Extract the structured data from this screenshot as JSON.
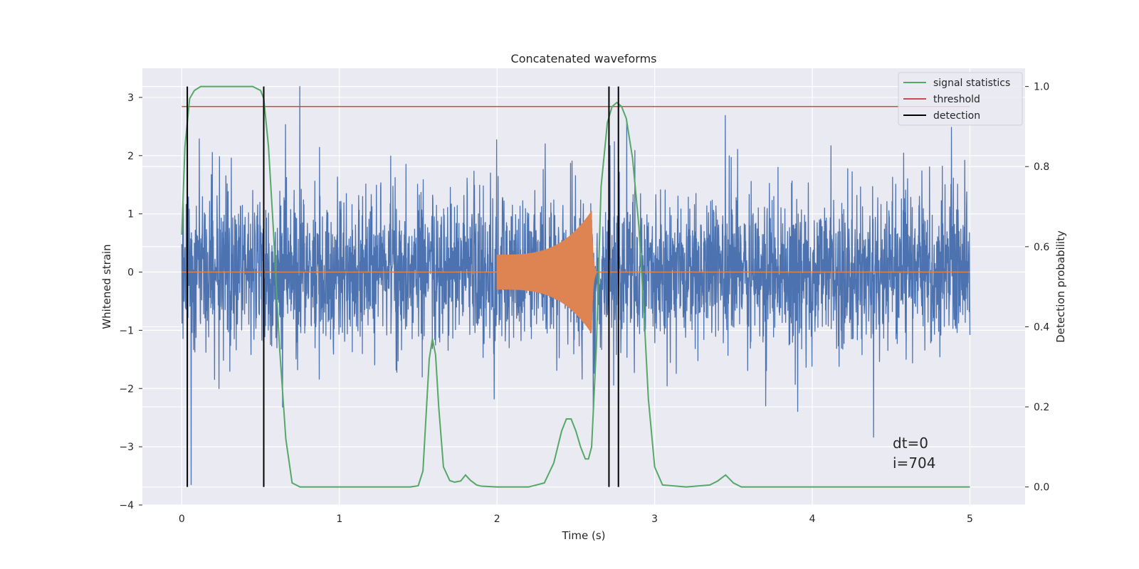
{
  "chart_data": {
    "type": "line",
    "title": "Concatenated waveforms",
    "xlabel": "Time (s)",
    "ylabel": "Whitened strain",
    "ylabel_right": "Detection probability",
    "xlim": [
      -0.25,
      5.35
    ],
    "ylim": [
      -4.0,
      3.5
    ],
    "ylim_right": [
      -0.045,
      1.0455
    ],
    "xticks": [
      0,
      1,
      2,
      3,
      4,
      5
    ],
    "yticks": [
      -4,
      -3,
      -2,
      -1,
      0,
      1,
      2,
      3
    ],
    "yticks_right": [
      0.0,
      0.2,
      0.4,
      0.6,
      0.8,
      1.0
    ],
    "xtick_labels": [
      "0",
      "1",
      "2",
      "3",
      "4",
      "5"
    ],
    "ytick_labels": [
      "−4",
      "−3",
      "−2",
      "−1",
      "0",
      "1",
      "2",
      "3"
    ],
    "ytick_labels_right": [
      "0.0",
      "0.2",
      "0.4",
      "0.6",
      "0.8",
      "1.0"
    ],
    "grid": true,
    "legend_position": "top-right",
    "colors": {
      "strain": "#4c72b0",
      "injected": "#dd8452",
      "signal_statistics": "#55a868",
      "threshold": "#c44e52",
      "detection": "#000000",
      "background": "#eaeaf2",
      "grid": "#ffffff"
    },
    "strain": {
      "t_start": 0.0,
      "t_end": 5.0,
      "approx_envelope": 1.8,
      "approx_peak": 3.2,
      "approx_trough": -3.65
    },
    "injected_waveform": {
      "t_start": 2.0,
      "t_merger": 2.6,
      "amplitude_start": 0.3,
      "amplitude_peak": 1.05
    },
    "series": [
      {
        "name": "signal statistics",
        "axis": "right",
        "x": [
          0.0,
          0.02,
          0.05,
          0.08,
          0.12,
          0.2,
          0.3,
          0.45,
          0.5,
          0.52,
          0.55,
          0.58,
          0.62,
          0.66,
          0.7,
          0.75,
          1.0,
          1.2,
          1.45,
          1.5,
          1.53,
          1.57,
          1.59,
          1.61,
          1.63,
          1.66,
          1.7,
          1.73,
          1.77,
          1.8,
          1.83,
          1.87,
          1.9,
          2.0,
          2.2,
          2.3,
          2.36,
          2.41,
          2.44,
          2.47,
          2.5,
          2.53,
          2.56,
          2.58,
          2.6,
          2.63,
          2.66,
          2.7,
          2.73,
          2.76,
          2.79,
          2.82,
          2.86,
          2.9,
          2.93,
          2.96,
          3.0,
          3.05,
          3.2,
          3.35,
          3.4,
          3.45,
          3.5,
          3.55,
          3.7,
          4.0,
          5.0
        ],
        "y": [
          0.63,
          0.85,
          0.97,
          0.99,
          1.0,
          1.0,
          1.0,
          1.0,
          0.99,
          0.97,
          0.85,
          0.65,
          0.35,
          0.12,
          0.01,
          0.0,
          0.0,
          0.0,
          0.0,
          0.003,
          0.04,
          0.32,
          0.37,
          0.33,
          0.2,
          0.05,
          0.016,
          0.012,
          0.015,
          0.03,
          0.017,
          0.005,
          0.002,
          0.0,
          0.0,
          0.01,
          0.06,
          0.14,
          0.17,
          0.17,
          0.14,
          0.1,
          0.07,
          0.07,
          0.1,
          0.35,
          0.75,
          0.91,
          0.95,
          0.96,
          0.95,
          0.92,
          0.82,
          0.65,
          0.45,
          0.22,
          0.05,
          0.005,
          0.0,
          0.005,
          0.015,
          0.03,
          0.01,
          0.0,
          0.0,
          0.0,
          0.0
        ]
      },
      {
        "name": "threshold",
        "axis": "right",
        "x": [
          0.0,
          5.0
        ],
        "y": [
          0.95,
          0.95
        ]
      },
      {
        "name": "detection",
        "type": "vlines",
        "axis": "right",
        "x": [
          0.035,
          0.52,
          2.71,
          2.77
        ],
        "y_range": [
          0.0,
          1.0
        ]
      }
    ],
    "annotations": [
      "dt=0",
      "i=704"
    ]
  }
}
